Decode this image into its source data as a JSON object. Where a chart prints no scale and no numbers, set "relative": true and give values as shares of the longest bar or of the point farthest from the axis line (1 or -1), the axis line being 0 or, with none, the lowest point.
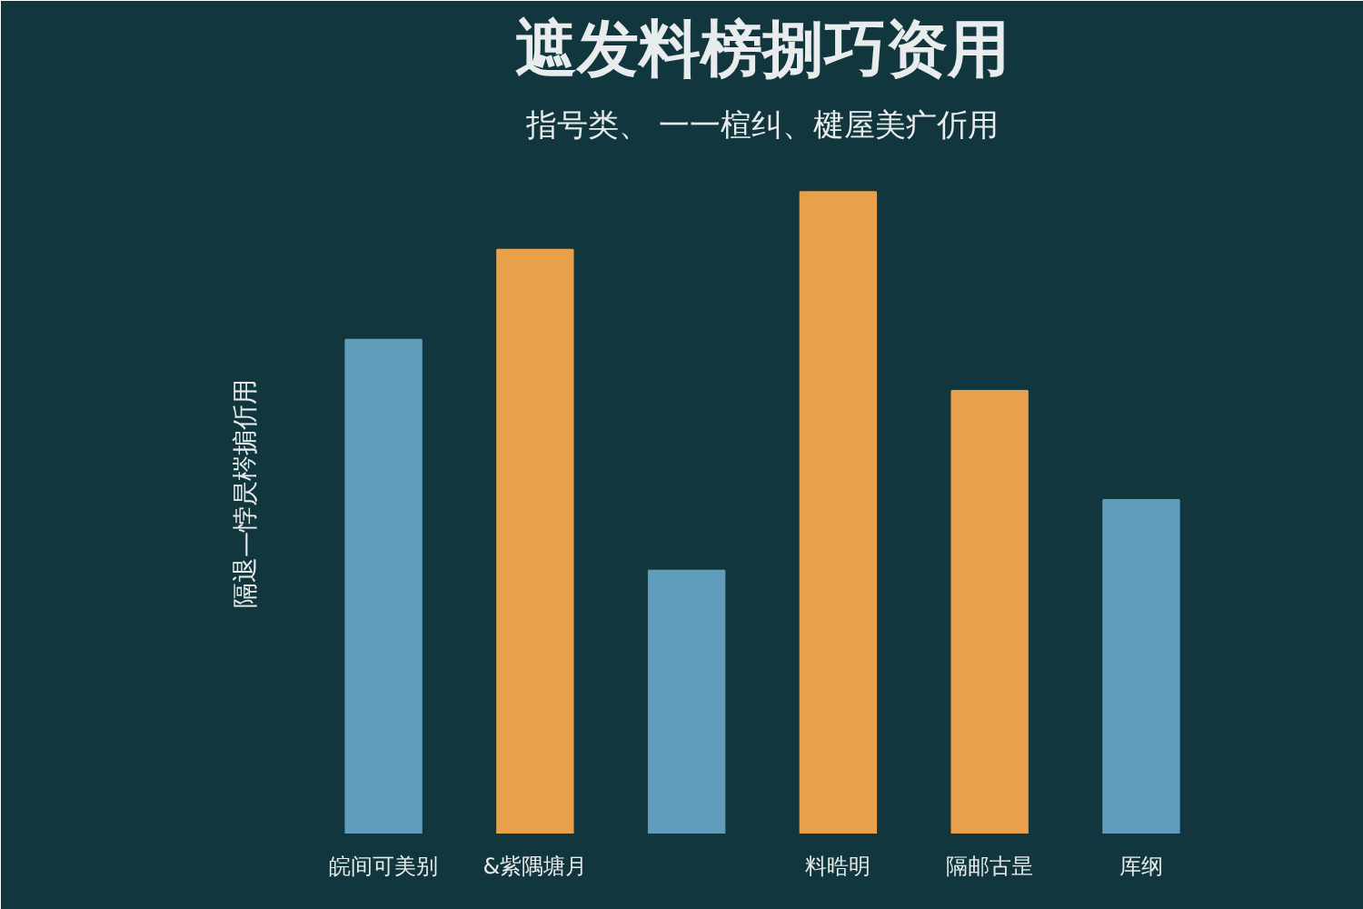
{
  "chart_data": {
    "type": "bar",
    "title": "遮发料榜捌巧资用",
    "subtitle": "指号类、 一一楦纠、楗屋美疒伒用",
    "ylabel": "隔退—悖昃梣掮伒用",
    "categories": [
      "皖间可美别",
      "&紫隅塘月",
      null,
      "料晧明",
      "隔邮古昰",
      "厍纲"
    ],
    "values": [
      0.77,
      0.91,
      0.41,
      1,
      0.69,
      0.52
    ],
    "colors": [
      "#5f9dbb",
      "#e8a04a",
      "#5f9dbb",
      "#e8a04a",
      "#e8a04a",
      "#5f9dbb"
    ],
    "relative": true
  }
}
